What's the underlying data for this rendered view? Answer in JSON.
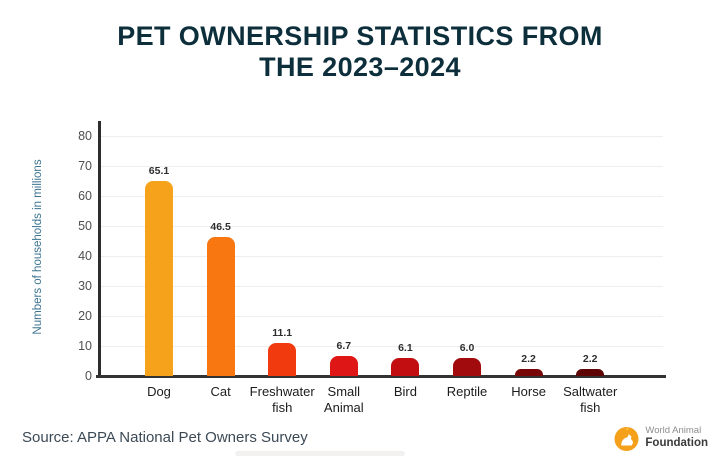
{
  "title": {
    "line1": "PET OWNERSHIP STATISTICS FROM",
    "line2": "THE 2023–2024"
  },
  "chart_data": {
    "type": "bar",
    "title": "PET OWNERSHIP STATISTICS FROM THE 2023–2024",
    "ylabel": "Numbers of households in millions",
    "xlabel": "",
    "ylim": [
      0,
      80
    ],
    "ytick_step": 10,
    "grid": true,
    "legend": false,
    "categories": [
      "Dog",
      "Cat",
      "Freshwater fish",
      "Small Animal",
      "Bird",
      "Reptile",
      "Horse",
      "Saltwater fish"
    ],
    "values": [
      65.1,
      46.5,
      11.1,
      6.7,
      6.1,
      6.0,
      2.2,
      2.2
    ],
    "value_labels": [
      "65.1",
      "46.5",
      "11.1",
      "6.7",
      "6.1",
      "6.0",
      "2.2",
      "2.2"
    ],
    "bar_colors": [
      "#F7A21B",
      "#F87711",
      "#F23A0F",
      "#DF1616",
      "#C20E11",
      "#A20B0D",
      "#780606",
      "#5E0404"
    ]
  },
  "source": {
    "text": "Source: APPA National Pet Owners Survey"
  },
  "logo": {
    "name_top": "World Animal",
    "name_bottom": "Foundation",
    "icon": "dog-in-circle-icon",
    "accent_color": "#F5A01B"
  },
  "colors": {
    "title_text": "#0D2F3C",
    "y_axis_label": "#3B7390",
    "tick_text": "#4F4F4F",
    "axis_line": "#2D2D2D",
    "gridline": "#F0EEEC",
    "value_label": "#2E2E2E",
    "category_label": "#1C1C1C",
    "source_text": "#3C4A56"
  }
}
